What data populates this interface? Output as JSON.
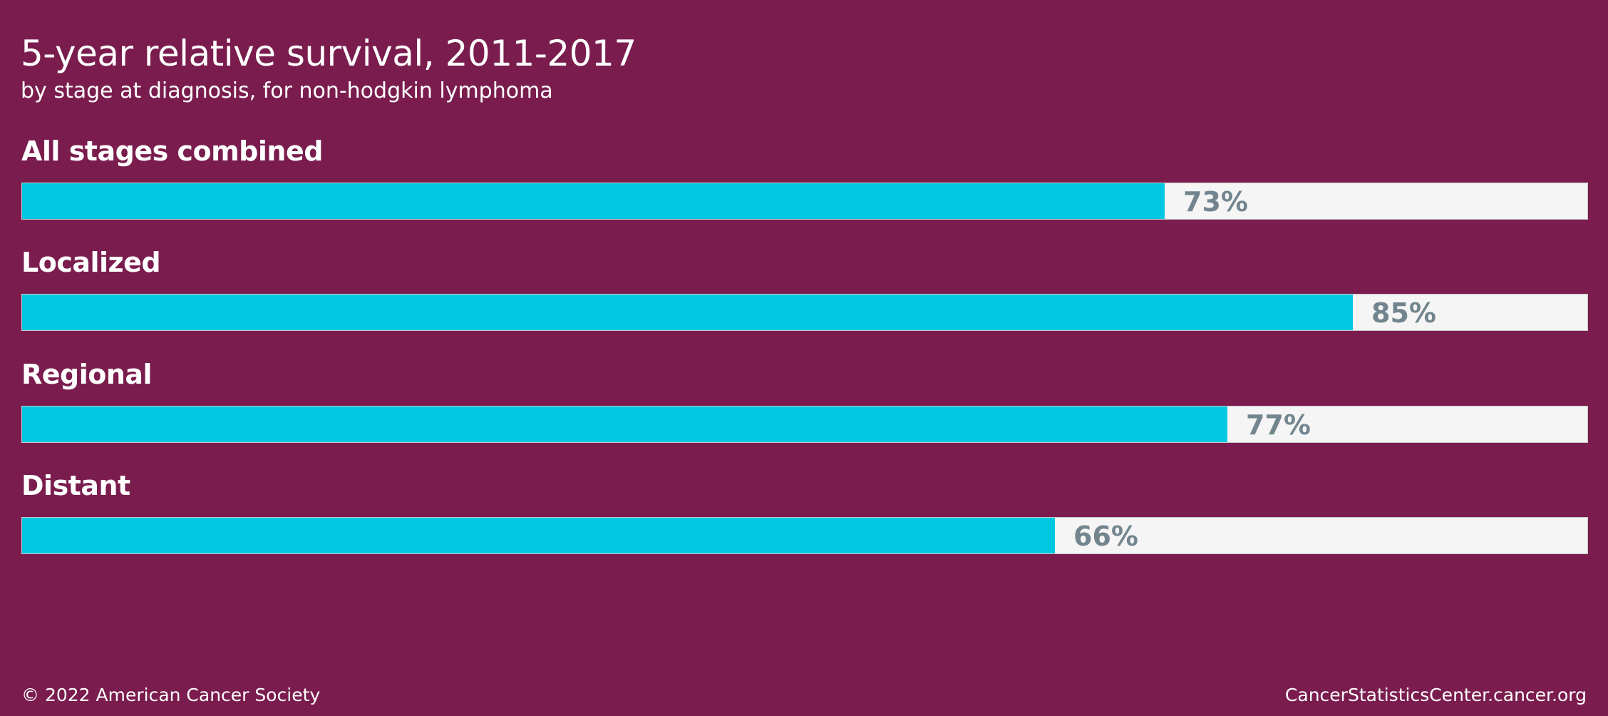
{
  "chart_data": {
    "type": "bar",
    "orientation": "horizontal",
    "title": "5-year relative survival, 2011-2017",
    "subtitle": "by stage at diagnosis, for non-hodgkin lymphoma",
    "categories": [
      "All stages combined",
      "Localized",
      "Regional",
      "Distant"
    ],
    "values": [
      73,
      85,
      77,
      66
    ],
    "value_labels": [
      "73%",
      "85%",
      "77%",
      "66%"
    ],
    "xlim": [
      0,
      100
    ],
    "grid": false,
    "legend": "none"
  },
  "colors": {
    "background": "#7a1d4e",
    "bar_fill": "#00c8e1",
    "track": "#f5f5f5",
    "value_text": "#72858f"
  },
  "footer": {
    "copyright": "© 2022 American Cancer Society",
    "website": "CancerStatisticsCenter.cancer.org"
  }
}
